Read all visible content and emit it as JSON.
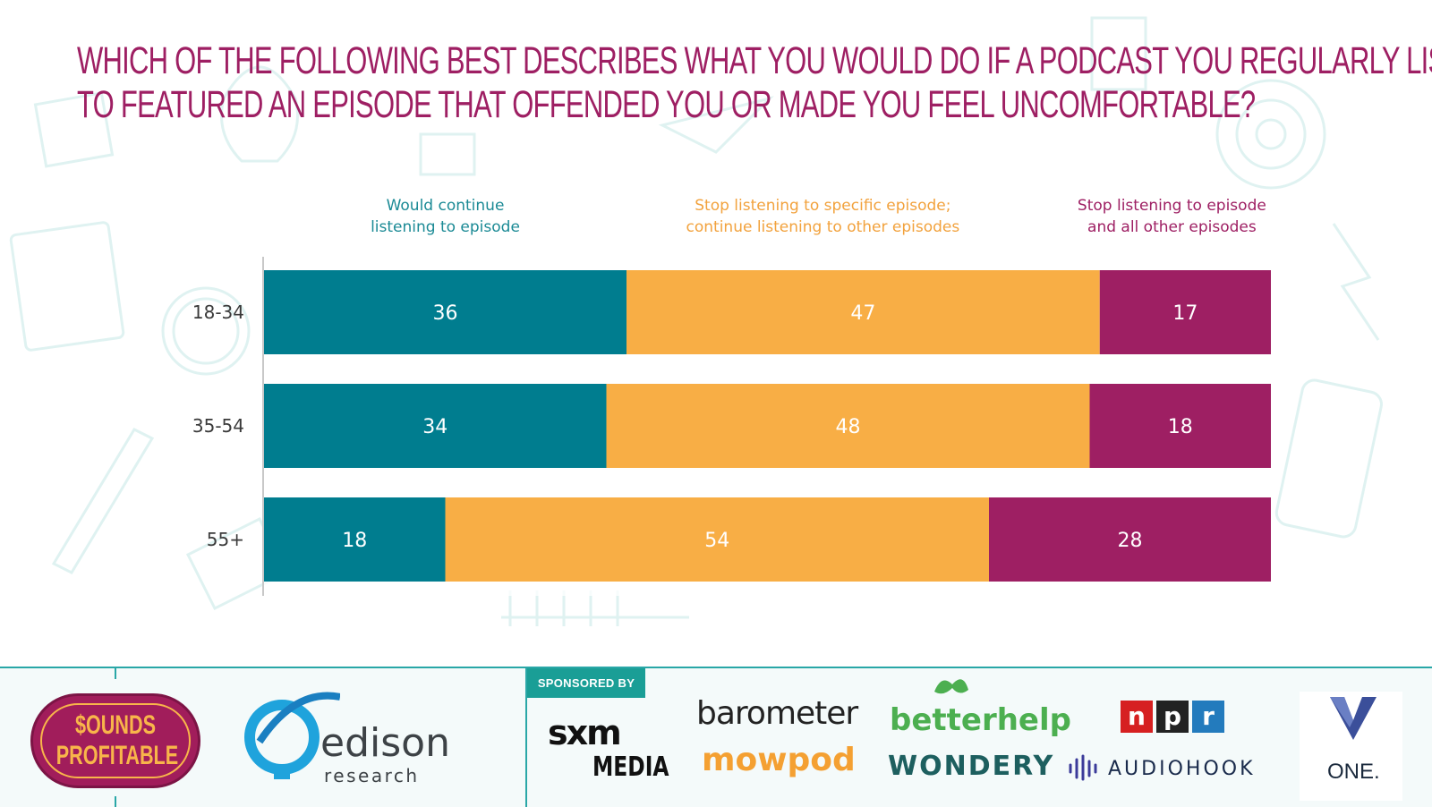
{
  "title_lines": [
    "Which of the following best describes what you would do if a podcast you regularly listen",
    "to featured an episode that offended you or made you feel uncomfortable?"
  ],
  "colors": {
    "continue": "#007d8f",
    "stop_episode": "#f8ae45",
    "stop_all": "#9e1f63",
    "title": "#9e1f63",
    "axis": "#c8c8c8"
  },
  "chart_data": {
    "type": "bar",
    "orientation": "horizontal",
    "stacked": true,
    "categories": [
      "18-34",
      "35-54",
      "55+"
    ],
    "series": [
      {
        "name": "Would continue\nlistening to episode",
        "values": [
          36,
          34,
          18
        ]
      },
      {
        "name": "Stop listening to specific episode;\ncontinue listening to other episodes",
        "values": [
          47,
          48,
          54
        ]
      },
      {
        "name": "Stop listening to episode\nand all other episodes",
        "values": [
          17,
          18,
          28
        ]
      }
    ],
    "xlim": [
      0,
      100
    ],
    "legend": "top",
    "grid": false
  },
  "footer": {
    "sponsored_by": "SPONSORED BY",
    "sounds_profitable_line1": "$OUNDS",
    "sounds_profitable_line2": "PROFITABLE",
    "edison_name": "edison",
    "edison_sub": "research",
    "sxm": "sxm",
    "sxm_media": "MEDIA",
    "barometer": "barometer",
    "mowpod": "mowpod",
    "betterhelp": "betterhelp",
    "wondery": "WONDERY",
    "npr": [
      "n",
      "p",
      "r"
    ],
    "audiohook": "AUDIOHOOK",
    "one": "ONE."
  }
}
